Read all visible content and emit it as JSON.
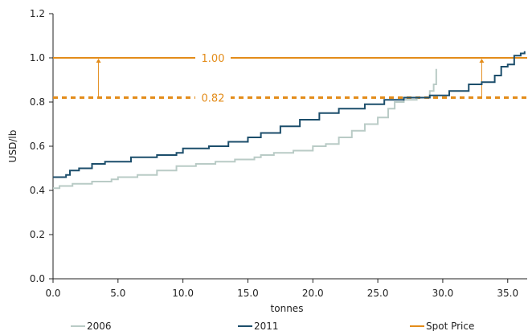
{
  "chart_data": {
    "type": "line",
    "title": "",
    "xlabel": "tonnes",
    "ylabel": "USD/lb",
    "xlim": [
      0,
      36.5
    ],
    "ylim": [
      0,
      1.2
    ],
    "x_ticks": [
      0,
      5,
      10,
      15,
      20,
      25,
      30,
      35
    ],
    "x_tick_labels": [
      "0.0",
      "5.0",
      "10.0",
      "15.0",
      "20.0",
      "25.0",
      "30.0",
      "35.0"
    ],
    "y_ticks": [
      0,
      0.2,
      0.4,
      0.6,
      0.8,
      1.0,
      1.2
    ],
    "y_tick_labels": [
      "0.0",
      "0.2",
      "0.4",
      "0.6",
      "0.8",
      "1.0",
      "1.2"
    ],
    "grid": false,
    "legend_position": "bottom",
    "series": [
      {
        "name": "2006",
        "color": "#b9cbc6",
        "points": [
          [
            0,
            0.41
          ],
          [
            0.5,
            0.42
          ],
          [
            1.5,
            0.43
          ],
          [
            3,
            0.44
          ],
          [
            4.5,
            0.45
          ],
          [
            5,
            0.46
          ],
          [
            6.5,
            0.47
          ],
          [
            8,
            0.49
          ],
          [
            9.5,
            0.51
          ],
          [
            11,
            0.52
          ],
          [
            12.5,
            0.53
          ],
          [
            14,
            0.54
          ],
          [
            15.5,
            0.55
          ],
          [
            16,
            0.56
          ],
          [
            17,
            0.57
          ],
          [
            18.5,
            0.58
          ],
          [
            20,
            0.6
          ],
          [
            21,
            0.61
          ],
          [
            22,
            0.64
          ],
          [
            23,
            0.67
          ],
          [
            24,
            0.7
          ],
          [
            25,
            0.73
          ],
          [
            25.8,
            0.77
          ],
          [
            26.3,
            0.8
          ],
          [
            27,
            0.81
          ],
          [
            28,
            0.82
          ],
          [
            29,
            0.85
          ],
          [
            29.3,
            0.88
          ],
          [
            29.5,
            0.95
          ]
        ]
      },
      {
        "name": "2011",
        "color": "#1c4e6b",
        "points": [
          [
            0,
            0.46
          ],
          [
            1,
            0.47
          ],
          [
            1.3,
            0.49
          ],
          [
            2,
            0.5
          ],
          [
            3,
            0.52
          ],
          [
            4,
            0.53
          ],
          [
            5.5,
            0.53
          ],
          [
            6,
            0.55
          ],
          [
            8,
            0.56
          ],
          [
            9.5,
            0.57
          ],
          [
            10,
            0.59
          ],
          [
            12,
            0.6
          ],
          [
            13.5,
            0.62
          ],
          [
            15,
            0.64
          ],
          [
            16,
            0.66
          ],
          [
            17.5,
            0.69
          ],
          [
            19,
            0.72
          ],
          [
            20.5,
            0.75
          ],
          [
            22,
            0.77
          ],
          [
            24,
            0.79
          ],
          [
            25.5,
            0.81
          ],
          [
            27,
            0.82
          ],
          [
            29,
            0.83
          ],
          [
            30.5,
            0.85
          ],
          [
            32,
            0.88
          ],
          [
            33,
            0.89
          ],
          [
            34,
            0.92
          ],
          [
            34.5,
            0.96
          ],
          [
            35,
            0.97
          ],
          [
            35.5,
            1.01
          ],
          [
            36,
            1.02
          ],
          [
            36.3,
            1.03
          ]
        ]
      }
    ],
    "reference_lines": [
      {
        "name": "Spot Price",
        "value": 1.0,
        "label": "1.00",
        "style": "solid",
        "color": "#e38c1a"
      },
      {
        "name": "",
        "value": 0.82,
        "label": "0.82",
        "style": "dashed",
        "color": "#e38c1a"
      }
    ],
    "arrows": [
      {
        "x": 3.5,
        "from": 0.82,
        "to": 1.0
      },
      {
        "x": 33.0,
        "from": 0.82,
        "to": 1.0
      }
    ],
    "legend": [
      "2006",
      "2011",
      "Spot Price"
    ]
  }
}
